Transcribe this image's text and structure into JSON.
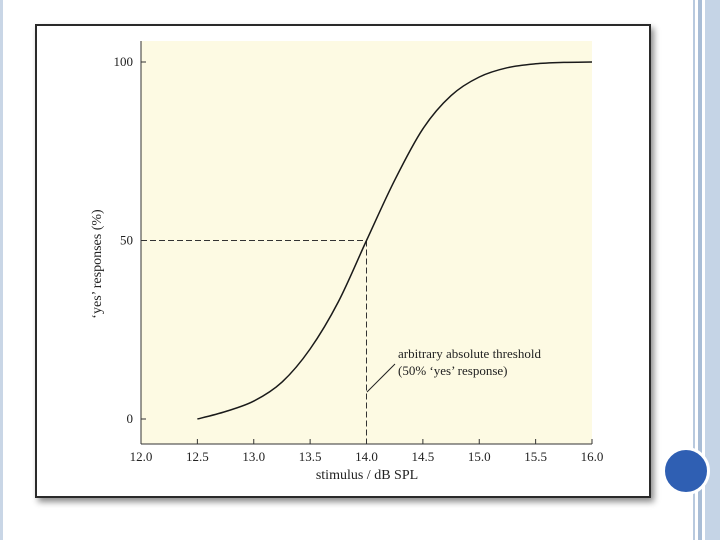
{
  "slide": {
    "accent_color": "#2f5fb3",
    "stripe_color": "#b8c9de"
  },
  "chart_data": {
    "type": "line",
    "xlabel": "stimulus / dB SPL",
    "ylabel": "‘yes’ responses (%)",
    "xlim": [
      12.0,
      16.0
    ],
    "ylim": [
      0,
      100
    ],
    "x_ticks": [
      "12.0",
      "12.5",
      "13.0",
      "13.5",
      "14.0",
      "14.5",
      "15.0",
      "15.5",
      "16.0"
    ],
    "y_ticks": [
      "0",
      "50",
      "100"
    ],
    "series": [
      {
        "x": [
          12.5,
          12.75,
          13.0,
          13.25,
          13.5,
          13.75,
          14.0,
          14.25,
          14.5,
          14.75,
          15.0,
          15.25,
          15.5,
          15.75,
          16.0
        ],
        "y": [
          0,
          2.1,
          5.0,
          10.3,
          19.6,
          32.8,
          50.0,
          66.9,
          81.3,
          90.6,
          95.8,
          98.4,
          99.5,
          99.9,
          100
        ]
      }
    ],
    "threshold": {
      "x": 14.0,
      "y": 50
    },
    "annotation": {
      "line1": "arbitrary absolute threshold",
      "line2": "(50% ‘yes’ response)"
    },
    "plot_background": "#fdfae3",
    "grid": false
  }
}
